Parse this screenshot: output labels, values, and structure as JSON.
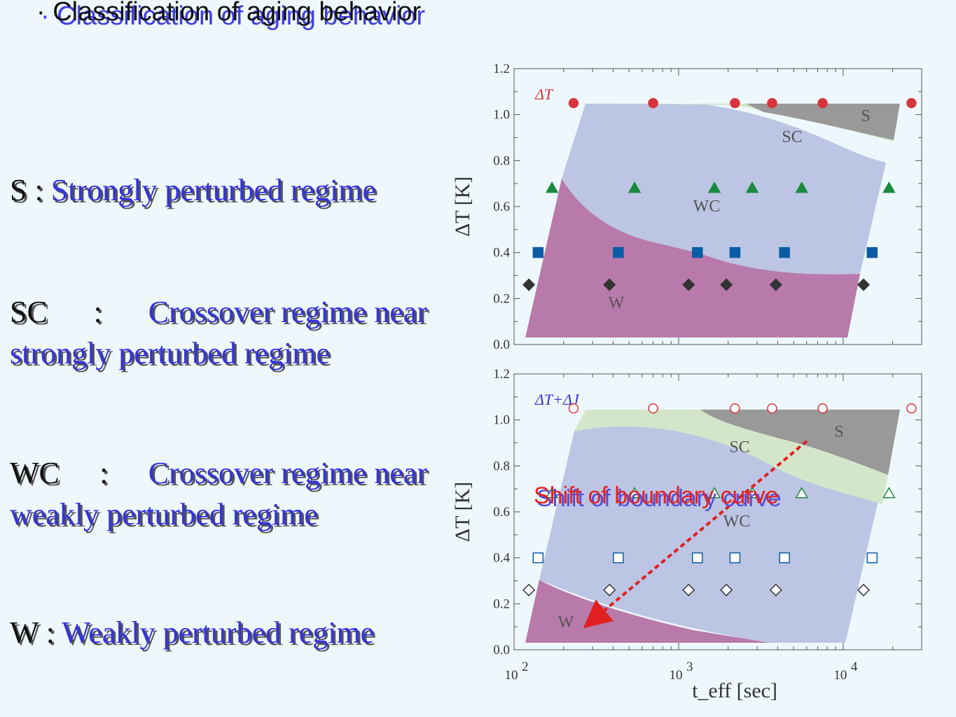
{
  "title": "· Classification of aging behavior",
  "regimes": [
    {
      "code": "S",
      "sep": " : ",
      "desc": "Strongly perturbed regime"
    },
    {
      "code": "SC",
      "sep": " : ",
      "desc_line1": "Crossover regime near",
      "desc_line2": "strongly perturbed regime"
    },
    {
      "code": "WC",
      "sep": " : ",
      "desc_line1": "Crossover regime near",
      "desc_line2": "weakly perturbed regime"
    },
    {
      "code": "W",
      "sep": " : ",
      "desc": "Weakly perturbed regime"
    }
  ],
  "annotation": "Shift of boundary curve",
  "colors": {
    "W": "#b87aab",
    "WC": "#bcc5e3",
    "SC": "#d3e6c9",
    "S": "#999999",
    "red": "#d8343c",
    "green": "#1a8a3e",
    "blue": "#0a5ca6",
    "black": "#333333",
    "arrow": "#e02020"
  },
  "chart_data": [
    {
      "type": "scatter",
      "title": "ΔT",
      "xlabel": "t_eff [sec]",
      "ylabel": "ΔT [K]",
      "xscale": "log",
      "xlim": [
        100,
        30000
      ],
      "ylim": [
        0,
        1.2
      ],
      "yticks": [
        "0.0",
        "0.2",
        "0.4",
        "0.6",
        "0.8",
        "1.0",
        "1.2"
      ],
      "region_labels": [
        "S",
        "SC",
        "WC",
        "W"
      ],
      "series": [
        {
          "marker": "circle",
          "color": "red",
          "filled": true,
          "y": 1.05,
          "x": [
            230,
            700,
            2200,
            3700,
            7500,
            26000
          ]
        },
        {
          "marker": "triangle",
          "color": "green",
          "filled": true,
          "y": 0.68,
          "x": [
            170,
            540,
            1650,
            2800,
            5600,
            19000
          ]
        },
        {
          "marker": "square",
          "color": "blue",
          "filled": true,
          "y": 0.4,
          "x": [
            140,
            430,
            1300,
            2200,
            4400,
            15000
          ]
        },
        {
          "marker": "diamond",
          "color": "black",
          "filled": true,
          "y": 0.26,
          "x": [
            123,
            380,
            1150,
            1950,
            3900,
            13300
          ]
        }
      ]
    },
    {
      "type": "scatter",
      "title": "ΔT+ΔJ",
      "xlabel": "t_eff [sec]",
      "ylabel": "ΔT [K]",
      "xscale": "log",
      "xlim": [
        100,
        30000
      ],
      "ylim": [
        0,
        1.2
      ],
      "xticks": [
        "10^2",
        "10^3",
        "10^4"
      ],
      "yticks": [
        "0.0",
        "0.2",
        "0.4",
        "0.6",
        "0.8",
        "1.0",
        "1.2"
      ],
      "region_labels": [
        "S",
        "SC",
        "WC",
        "W"
      ],
      "series": [
        {
          "marker": "circle",
          "color": "red",
          "filled": false,
          "y": 1.05,
          "x": [
            230,
            700,
            2200,
            3700,
            7500,
            26000
          ]
        },
        {
          "marker": "triangle",
          "color": "green",
          "filled": false,
          "y": 0.68,
          "x": [
            170,
            540,
            1650,
            2800,
            5600,
            19000
          ]
        },
        {
          "marker": "square",
          "color": "blue",
          "filled": false,
          "y": 0.4,
          "x": [
            140,
            430,
            1300,
            2200,
            4400,
            15000
          ]
        },
        {
          "marker": "diamond",
          "color": "black",
          "filled": false,
          "y": 0.26,
          "x": [
            123,
            380,
            1150,
            1950,
            3900,
            13300
          ]
        }
      ]
    }
  ]
}
